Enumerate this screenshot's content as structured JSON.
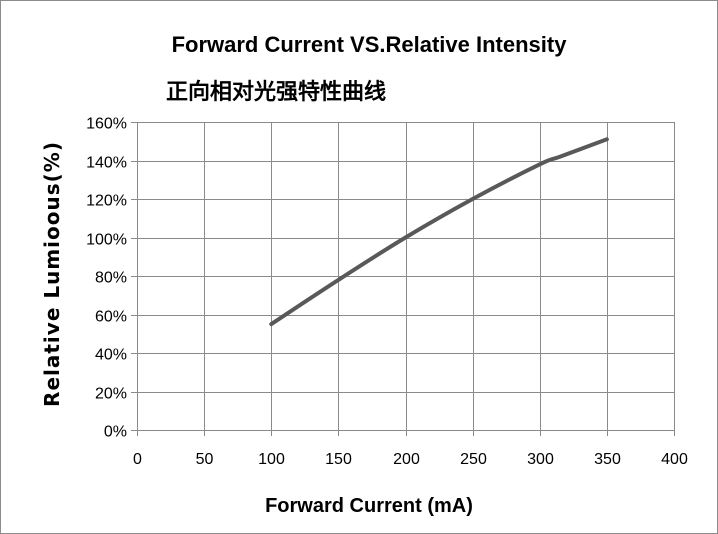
{
  "chart_data": {
    "type": "line",
    "title": "Forward Current VS.Relative Intensity",
    "subtitle": "正向相对光强特性曲线",
    "xlabel": "Forward Current (mA)",
    "ylabel": "Relative Lumioous(%)",
    "xlim": [
      0,
      400
    ],
    "ylim": [
      0,
      160
    ],
    "x_ticks": [
      0,
      50,
      100,
      150,
      200,
      250,
      300,
      350,
      400
    ],
    "y_ticks": [
      0,
      20,
      40,
      60,
      80,
      100,
      120,
      140,
      160
    ],
    "y_tick_suffix": "%",
    "grid": true,
    "legend": "none",
    "series": [
      {
        "color": "#595959",
        "x": [
          100,
          150,
          200,
          250,
          300,
          315,
          350
        ],
        "y": [
          55,
          78,
          100,
          120,
          138,
          142,
          151
        ]
      }
    ]
  }
}
